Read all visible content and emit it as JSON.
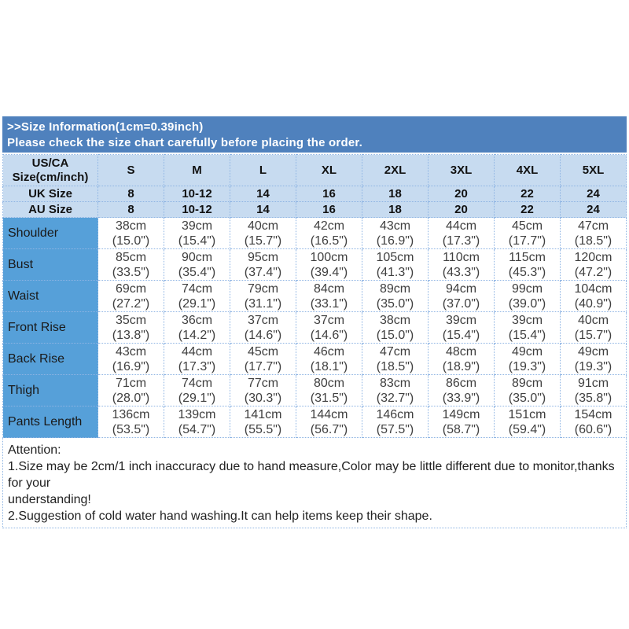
{
  "banner": {
    "line1": ">>Size Information(1cm=0.39inch)",
    "line2": "Please check the size chart carefully before placing the order."
  },
  "table": {
    "corner": {
      "line1": "US/CA",
      "line2": "Size(cm/inch)"
    },
    "sizes": [
      "S",
      "M",
      "L",
      "XL",
      "2XL",
      "3XL",
      "4XL",
      "5XL"
    ],
    "uk": {
      "label": "UK Size",
      "values": [
        "8",
        "10-12",
        "14",
        "16",
        "18",
        "20",
        "22",
        "24"
      ]
    },
    "au": {
      "label": "AU Size",
      "values": [
        "8",
        "10-12",
        "14",
        "16",
        "18",
        "20",
        "22",
        "24"
      ]
    },
    "measurements": [
      {
        "label": "Shoulder",
        "values": [
          {
            "cm": "38cm",
            "in": "(15.0\")"
          },
          {
            "cm": "39cm",
            "in": "(15.4\")"
          },
          {
            "cm": "40cm",
            "in": "(15.7\")"
          },
          {
            "cm": "42cm",
            "in": "(16.5\")"
          },
          {
            "cm": "43cm",
            "in": "(16.9\")"
          },
          {
            "cm": "44cm",
            "in": "(17.3\")"
          },
          {
            "cm": "45cm",
            "in": "(17.7\")"
          },
          {
            "cm": "47cm",
            "in": "(18.5\")"
          }
        ]
      },
      {
        "label": "Bust",
        "values": [
          {
            "cm": "85cm",
            "in": "(33.5\")"
          },
          {
            "cm": "90cm",
            "in": "(35.4\")"
          },
          {
            "cm": "95cm",
            "in": "(37.4\")"
          },
          {
            "cm": "100cm",
            "in": "(39.4\")"
          },
          {
            "cm": "105cm",
            "in": "(41.3\")"
          },
          {
            "cm": "110cm",
            "in": "(43.3\")"
          },
          {
            "cm": "115cm",
            "in": "(45.3\")"
          },
          {
            "cm": "120cm",
            "in": "(47.2\")"
          }
        ]
      },
      {
        "label": "Waist",
        "values": [
          {
            "cm": "69cm",
            "in": "(27.2\")"
          },
          {
            "cm": "74cm",
            "in": "(29.1\")"
          },
          {
            "cm": "79cm",
            "in": "(31.1\")"
          },
          {
            "cm": "84cm",
            "in": "(33.1\")"
          },
          {
            "cm": "89cm",
            "in": "(35.0\")"
          },
          {
            "cm": "94cm",
            "in": "(37.0\")"
          },
          {
            "cm": "99cm",
            "in": "(39.0\")"
          },
          {
            "cm": "104cm",
            "in": "(40.9\")"
          }
        ]
      },
      {
        "label": "Front Rise",
        "values": [
          {
            "cm": "35cm",
            "in": "(13.8\")"
          },
          {
            "cm": "36cm",
            "in": "(14.2\")"
          },
          {
            "cm": "37cm",
            "in": "(14.6\")"
          },
          {
            "cm": "37cm",
            "in": "(14.6\")"
          },
          {
            "cm": "38cm",
            "in": "(15.0\")"
          },
          {
            "cm": "39cm",
            "in": "(15.4\")"
          },
          {
            "cm": "39cm",
            "in": "(15.4\")"
          },
          {
            "cm": "40cm",
            "in": "(15.7\")"
          }
        ]
      },
      {
        "label": "Back Rise",
        "values": [
          {
            "cm": "43cm",
            "in": "(16.9\")"
          },
          {
            "cm": "44cm",
            "in": "(17.3\")"
          },
          {
            "cm": "45cm",
            "in": "(17.7\")"
          },
          {
            "cm": "46cm",
            "in": "(18.1\")"
          },
          {
            "cm": "47cm",
            "in": "(18.5\")"
          },
          {
            "cm": "48cm",
            "in": "(18.9\")"
          },
          {
            "cm": "49cm",
            "in": "(19.3\")"
          },
          {
            "cm": "49cm",
            "in": "(19.3\")"
          }
        ]
      },
      {
        "label": "Thigh",
        "values": [
          {
            "cm": "71cm",
            "in": "(28.0\")"
          },
          {
            "cm": "74cm",
            "in": "(29.1\")"
          },
          {
            "cm": "77cm",
            "in": "(30.3\")"
          },
          {
            "cm": "80cm",
            "in": "(31.5\")"
          },
          {
            "cm": "83cm",
            "in": "(32.7\")"
          },
          {
            "cm": "86cm",
            "in": "(33.9\")"
          },
          {
            "cm": "89cm",
            "in": "(35.0\")"
          },
          {
            "cm": "91cm",
            "in": "(35.8\")"
          }
        ]
      },
      {
        "label": "Pants Length",
        "values": [
          {
            "cm": "136cm",
            "in": "(53.5\")"
          },
          {
            "cm": "139cm",
            "in": "(54.7\")"
          },
          {
            "cm": "141cm",
            "in": "(55.5\")"
          },
          {
            "cm": "144cm",
            "in": "(56.7\")"
          },
          {
            "cm": "146cm",
            "in": "(57.5\")"
          },
          {
            "cm": "149cm",
            "in": "(58.7\")"
          },
          {
            "cm": "151cm",
            "in": "(59.4\")"
          },
          {
            "cm": "154cm",
            "in": "(60.6\")"
          }
        ]
      }
    ]
  },
  "attention": {
    "text": "Attention:\n1.Size may be 2cm/1 inch inaccuracy due to hand measure,Color may be little different due to monitor,thanks for your\nunderstanding!\n2.Suggestion of cold water hand washing.It can help items keep their shape."
  },
  "colors": {
    "banner_blue": "#4F81BD",
    "cell_light_blue": "#C7DBF0",
    "label_blue": "#56A0D9",
    "border_blue": "#8EB4E3"
  }
}
